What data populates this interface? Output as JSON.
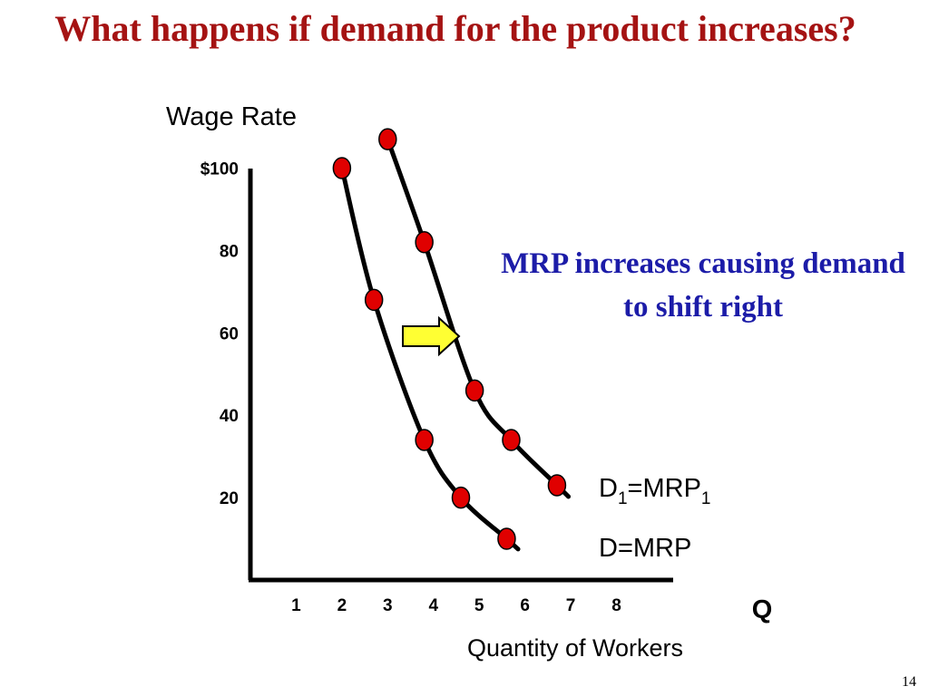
{
  "slide": {
    "title": "What happens if demand for the product increases?",
    "note": "MRP increases causing demand to shift right",
    "number": "14"
  },
  "colors": {
    "title": "#a51313",
    "note": "#1c1ca8",
    "points": "#e00000",
    "arrow": "#ffff33"
  },
  "chart_data": {
    "type": "line",
    "ylabel": "Wage Rate",
    "xlabel": "Quantity of Workers",
    "x_axis_symbol": "Q",
    "ytick_labels": [
      "$100",
      "80",
      "60",
      "40",
      "20"
    ],
    "yticks": [
      100,
      80,
      60,
      40,
      20
    ],
    "xticks": [
      1,
      2,
      3,
      4,
      5,
      6,
      7,
      8
    ],
    "xlim": [
      0,
      9.2
    ],
    "ylim": [
      0,
      110
    ],
    "series": [
      {
        "name": "D=MRP",
        "label_main": "D=MRP",
        "label_sub": "",
        "points": [
          [
            2,
            100
          ],
          [
            2.7,
            68
          ],
          [
            3.8,
            34
          ],
          [
            4.6,
            20
          ],
          [
            5.6,
            10
          ]
        ]
      },
      {
        "name": "D1=MRP1",
        "label_main": "D",
        "label_sub": "1",
        "label_mid": "=MRP",
        "label_sub2": "1",
        "points": [
          [
            3.0,
            107
          ],
          [
            3.8,
            82
          ],
          [
            4.9,
            46
          ],
          [
            5.7,
            34
          ],
          [
            6.7,
            23
          ]
        ]
      }
    ],
    "annotation": "arrow pointing right indicating demand shift"
  }
}
